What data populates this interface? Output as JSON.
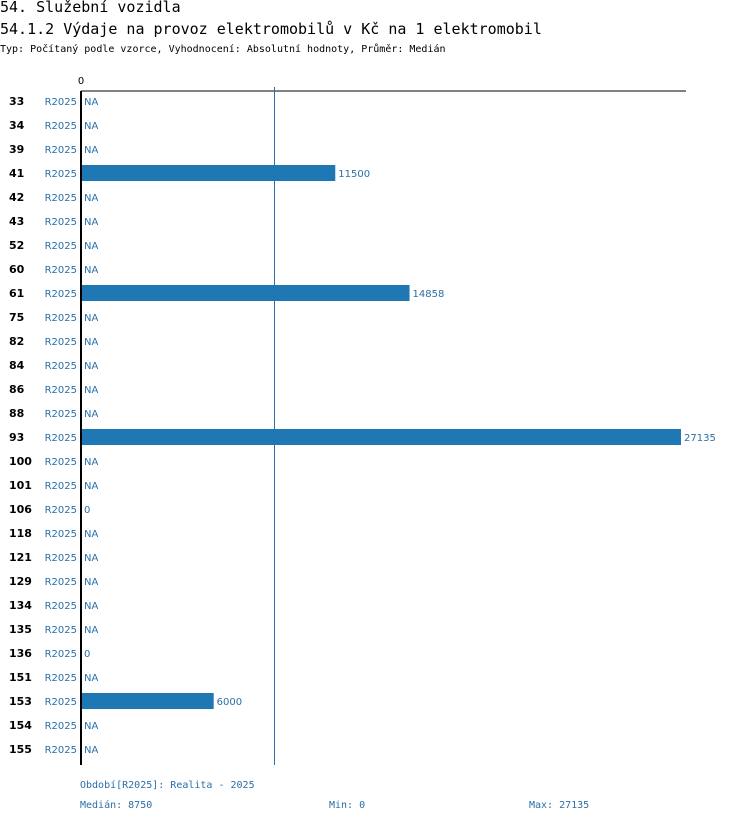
{
  "header": {
    "section": "54. Služební vozidla",
    "chart_title": "54.1.2 Výdaje na provoz elektromobilů v Kč na 1 elektromobil",
    "subtitle": "Typ: Počítaný podle vzorce, Vyhodnocení: Absolutní hodnoty, Průměr: Medián"
  },
  "footer": {
    "period": "Období[R2025]: Realita - 2025",
    "median": "Medián: 8750",
    "min": "Min: 0",
    "max": "Max: 27135"
  },
  "colors": {
    "bar": "#1f77b4",
    "label": "#2a6fa8",
    "axis": "#000000",
    "median_line": "#2a6fa8"
  },
  "chart_data": {
    "type": "bar",
    "orientation": "horizontal",
    "x_min": 0,
    "x_max": 27135,
    "median": 8750,
    "axis_zero_label": "0",
    "period_label": "R2025",
    "na_label": "NA",
    "rows": [
      {
        "category": "33",
        "period": "R2025",
        "value": null,
        "label": "NA"
      },
      {
        "category": "34",
        "period": "R2025",
        "value": null,
        "label": "NA"
      },
      {
        "category": "39",
        "period": "R2025",
        "value": null,
        "label": "NA"
      },
      {
        "category": "41",
        "period": "R2025",
        "value": 11500,
        "label": "11500"
      },
      {
        "category": "42",
        "period": "R2025",
        "value": null,
        "label": "NA"
      },
      {
        "category": "43",
        "period": "R2025",
        "value": null,
        "label": "NA"
      },
      {
        "category": "52",
        "period": "R2025",
        "value": null,
        "label": "NA"
      },
      {
        "category": "60",
        "period": "R2025",
        "value": null,
        "label": "NA"
      },
      {
        "category": "61",
        "period": "R2025",
        "value": 14858,
        "label": "14858"
      },
      {
        "category": "75",
        "period": "R2025",
        "value": null,
        "label": "NA"
      },
      {
        "category": "82",
        "period": "R2025",
        "value": null,
        "label": "NA"
      },
      {
        "category": "84",
        "period": "R2025",
        "value": null,
        "label": "NA"
      },
      {
        "category": "86",
        "period": "R2025",
        "value": null,
        "label": "NA"
      },
      {
        "category": "88",
        "period": "R2025",
        "value": null,
        "label": "NA"
      },
      {
        "category": "93",
        "period": "R2025",
        "value": 27135,
        "label": "27135"
      },
      {
        "category": "100",
        "period": "R2025",
        "value": null,
        "label": "NA"
      },
      {
        "category": "101",
        "period": "R2025",
        "value": null,
        "label": "NA"
      },
      {
        "category": "106",
        "period": "R2025",
        "value": 0,
        "label": "0"
      },
      {
        "category": "118",
        "period": "R2025",
        "value": null,
        "label": "NA"
      },
      {
        "category": "121",
        "period": "R2025",
        "value": null,
        "label": "NA"
      },
      {
        "category": "129",
        "period": "R2025",
        "value": null,
        "label": "NA"
      },
      {
        "category": "134",
        "period": "R2025",
        "value": null,
        "label": "NA"
      },
      {
        "category": "135",
        "period": "R2025",
        "value": null,
        "label": "NA"
      },
      {
        "category": "136",
        "period": "R2025",
        "value": 0,
        "label": "0"
      },
      {
        "category": "151",
        "period": "R2025",
        "value": null,
        "label": "NA"
      },
      {
        "category": "153",
        "period": "R2025",
        "value": 6000,
        "label": "6000"
      },
      {
        "category": "154",
        "period": "R2025",
        "value": null,
        "label": "NA"
      },
      {
        "category": "155",
        "period": "R2025",
        "value": null,
        "label": "NA"
      }
    ]
  }
}
